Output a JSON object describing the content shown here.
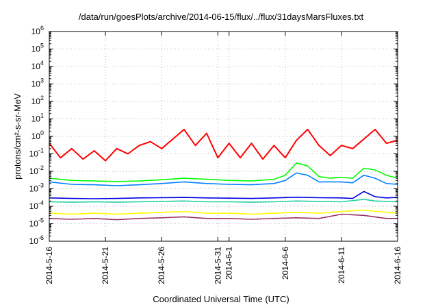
{
  "chart_data": {
    "type": "line",
    "title": "/data/run/goesPlots/archive/2014-06-15/flux/../flux/31daysMarsFluxes.txt",
    "xlabel": "Coordinated Universal Time (UTC)",
    "ylabel": "protons/cm²-s-sr-MeV",
    "yscale": "log",
    "ylim": [
      1e-06,
      1000000.0
    ],
    "xlim": [
      "2014-05-16",
      "2014-06-16"
    ],
    "grid": true,
    "x_ticks": [
      {
        "date": "2014-05-16",
        "label": "2014-5-16"
      },
      {
        "date": "2014-05-21",
        "label": "2014-5-21"
      },
      {
        "date": "2014-05-26",
        "label": "2014-5-26"
      },
      {
        "date": "2014-05-31",
        "label": "2014-5-31"
      },
      {
        "date": "2014-06-01",
        "label": "2014-6-1"
      },
      {
        "date": "2014-06-06",
        "label": "2014-6-6"
      },
      {
        "date": "2014-06-11",
        "label": "2014-6-11"
      },
      {
        "date": "2014-06-16",
        "label": "2014-6-16"
      }
    ],
    "y_ticks": [
      {
        "exp": "-6",
        "value": 1e-06
      },
      {
        "exp": "-5",
        "value": 1e-05
      },
      {
        "exp": "-4",
        "value": 0.0001
      },
      {
        "exp": "-3",
        "value": 0.001
      },
      {
        "exp": "-2",
        "value": 0.01
      },
      {
        "exp": "-1",
        "value": 0.1
      },
      {
        "exp": "0",
        "value": 1
      },
      {
        "exp": "1",
        "value": 10
      },
      {
        "exp": "2",
        "value": 100
      },
      {
        "exp": "3",
        "value": 1000
      },
      {
        "exp": "4",
        "value": 10000
      },
      {
        "exp": "5",
        "value": 100000
      },
      {
        "exp": "6",
        "value": 1000000
      }
    ],
    "series": [
      {
        "color": "#ff0000",
        "points": [
          [
            "2014-05-16",
            0.4
          ],
          [
            "2014-05-17",
            0.06
          ],
          [
            "2014-05-18",
            0.2
          ],
          [
            "2014-05-19",
            0.05
          ],
          [
            "2014-05-20",
            0.15
          ],
          [
            "2014-05-21",
            0.04
          ],
          [
            "2014-05-22",
            0.2
          ],
          [
            "2014-05-23",
            0.1
          ],
          [
            "2014-05-24",
            0.3
          ],
          [
            "2014-05-25",
            0.5
          ],
          [
            "2014-05-26",
            0.2
          ],
          [
            "2014-05-27",
            0.7
          ],
          [
            "2014-05-28",
            2.5
          ],
          [
            "2014-05-29",
            0.3
          ],
          [
            "2014-05-30",
            1.5
          ],
          [
            "2014-05-31",
            0.06
          ],
          [
            "2014-06-01",
            0.4
          ],
          [
            "2014-06-02",
            0.06
          ],
          [
            "2014-06-03",
            0.4
          ],
          [
            "2014-06-04",
            0.05
          ],
          [
            "2014-06-05",
            0.3
          ],
          [
            "2014-06-06",
            0.06
          ],
          [
            "2014-06-07",
            0.6
          ],
          [
            "2014-06-08",
            2.5
          ],
          [
            "2014-06-09",
            0.3
          ],
          [
            "2014-06-10",
            0.08
          ],
          [
            "2014-06-11",
            0.3
          ],
          [
            "2014-06-12",
            0.2
          ],
          [
            "2014-06-13",
            0.7
          ],
          [
            "2014-06-14",
            2.5
          ],
          [
            "2014-06-15",
            0.4
          ],
          [
            "2014-06-16",
            0.6
          ]
        ]
      },
      {
        "color": "#00ff00",
        "points": [
          [
            "2014-05-16",
            0.004
          ],
          [
            "2014-05-18",
            0.003
          ],
          [
            "2014-05-20",
            0.0028
          ],
          [
            "2014-05-22",
            0.0026
          ],
          [
            "2014-05-24",
            0.0028
          ],
          [
            "2014-05-26",
            0.0033
          ],
          [
            "2014-05-28",
            0.004
          ],
          [
            "2014-05-30",
            0.0035
          ],
          [
            "2014-06-01",
            0.003
          ],
          [
            "2014-06-03",
            0.0028
          ],
          [
            "2014-06-05",
            0.0035
          ],
          [
            "2014-06-06",
            0.006
          ],
          [
            "2014-06-07",
            0.03
          ],
          [
            "2014-06-08",
            0.02
          ],
          [
            "2014-06-09",
            0.005
          ],
          [
            "2014-06-10",
            0.004
          ],
          [
            "2014-06-11",
            0.0045
          ],
          [
            "2014-06-12",
            0.004
          ],
          [
            "2014-06-13",
            0.015
          ],
          [
            "2014-06-14",
            0.012
          ],
          [
            "2014-06-15",
            0.006
          ],
          [
            "2014-06-16",
            0.004
          ]
        ]
      },
      {
        "color": "#0080ff",
        "points": [
          [
            "2014-05-16",
            0.0025
          ],
          [
            "2014-05-18",
            0.0018
          ],
          [
            "2014-05-20",
            0.0017
          ],
          [
            "2014-05-22",
            0.0015
          ],
          [
            "2014-05-24",
            0.0017
          ],
          [
            "2014-05-26",
            0.002
          ],
          [
            "2014-05-28",
            0.0025
          ],
          [
            "2014-05-30",
            0.002
          ],
          [
            "2014-06-01",
            0.0018
          ],
          [
            "2014-06-03",
            0.0017
          ],
          [
            "2014-06-05",
            0.002
          ],
          [
            "2014-06-06",
            0.003
          ],
          [
            "2014-06-07",
            0.008
          ],
          [
            "2014-06-08",
            0.006
          ],
          [
            "2014-06-09",
            0.0025
          ],
          [
            "2014-06-11",
            0.0025
          ],
          [
            "2014-06-12",
            0.0022
          ],
          [
            "2014-06-13",
            0.006
          ],
          [
            "2014-06-14",
            0.004
          ],
          [
            "2014-06-15",
            0.002
          ],
          [
            "2014-06-16",
            0.0018
          ]
        ]
      },
      {
        "color": "#0000e0",
        "points": [
          [
            "2014-05-16",
            0.0003
          ],
          [
            "2014-05-18",
            0.00028
          ],
          [
            "2014-05-20",
            0.00027
          ],
          [
            "2014-05-22",
            0.00028
          ],
          [
            "2014-05-24",
            0.0003
          ],
          [
            "2014-05-26",
            0.00031
          ],
          [
            "2014-05-28",
            0.00032
          ],
          [
            "2014-05-30",
            0.0003
          ],
          [
            "2014-06-01",
            0.00029
          ],
          [
            "2014-06-03",
            0.00028
          ],
          [
            "2014-06-05",
            0.0003
          ],
          [
            "2014-06-07",
            0.00033
          ],
          [
            "2014-06-09",
            0.00031
          ],
          [
            "2014-06-11",
            0.0003
          ],
          [
            "2014-06-12",
            0.00028
          ],
          [
            "2014-06-13",
            0.0007
          ],
          [
            "2014-06-14",
            0.00035
          ],
          [
            "2014-06-15",
            0.0003
          ],
          [
            "2014-06-16",
            0.00032
          ]
        ]
      },
      {
        "color": "#20d0a0",
        "points": [
          [
            "2014-05-16",
            0.00018
          ],
          [
            "2014-05-18",
            0.00017
          ],
          [
            "2014-05-20",
            0.00018
          ],
          [
            "2014-05-22",
            0.00017
          ],
          [
            "2014-05-24",
            0.00018
          ],
          [
            "2014-05-26",
            0.00019
          ],
          [
            "2014-05-28",
            0.0002
          ],
          [
            "2014-05-30",
            0.00018
          ],
          [
            "2014-06-01",
            0.00018
          ],
          [
            "2014-06-03",
            0.00017
          ],
          [
            "2014-06-05",
            0.00018
          ],
          [
            "2014-06-07",
            0.0002
          ],
          [
            "2014-06-09",
            0.00019
          ],
          [
            "2014-06-11",
            0.00018
          ],
          [
            "2014-06-13",
            0.00025
          ],
          [
            "2014-06-14",
            0.0002
          ],
          [
            "2014-06-16",
            0.00018
          ]
        ]
      },
      {
        "color": "#ffff00",
        "points": [
          [
            "2014-05-16",
            4e-05
          ],
          [
            "2014-05-18",
            3.5e-05
          ],
          [
            "2014-05-20",
            4e-05
          ],
          [
            "2014-05-22",
            3.5e-05
          ],
          [
            "2014-05-24",
            4e-05
          ],
          [
            "2014-05-26",
            4.5e-05
          ],
          [
            "2014-05-28",
            5e-05
          ],
          [
            "2014-05-30",
            4e-05
          ],
          [
            "2014-06-01",
            4e-05
          ],
          [
            "2014-06-03",
            3.5e-05
          ],
          [
            "2014-06-05",
            4e-05
          ],
          [
            "2014-06-07",
            4.5e-05
          ],
          [
            "2014-06-09",
            4e-05
          ],
          [
            "2014-06-11",
            5e-05
          ],
          [
            "2014-06-13",
            6e-05
          ],
          [
            "2014-06-15",
            4.5e-05
          ],
          [
            "2014-06-16",
            4e-05
          ]
        ]
      },
      {
        "color": "#993366",
        "points": [
          [
            "2014-05-16",
            2e-05
          ],
          [
            "2014-05-18",
            1.8e-05
          ],
          [
            "2014-05-20",
            2e-05
          ],
          [
            "2014-05-22",
            1.7e-05
          ],
          [
            "2014-05-24",
            2e-05
          ],
          [
            "2014-05-26",
            2.2e-05
          ],
          [
            "2014-05-28",
            2.5e-05
          ],
          [
            "2014-05-30",
            2e-05
          ],
          [
            "2014-06-01",
            2e-05
          ],
          [
            "2014-06-03",
            1.8e-05
          ],
          [
            "2014-06-05",
            2e-05
          ],
          [
            "2014-06-07",
            2.2e-05
          ],
          [
            "2014-06-09",
            2e-05
          ],
          [
            "2014-06-11",
            3.5e-05
          ],
          [
            "2014-06-13",
            3e-05
          ],
          [
            "2014-06-15",
            2e-05
          ],
          [
            "2014-06-16",
            2e-05
          ]
        ]
      }
    ]
  }
}
